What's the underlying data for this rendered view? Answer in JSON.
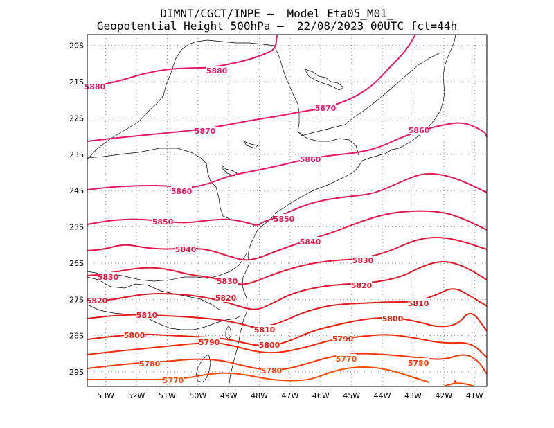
{
  "header": {
    "line1": "DIMNT/CGCT/INPE –  Model Eta05_M01_",
    "line2": "Geopotential Height 500hPa –  22/08/2023 00UTC fct=44h"
  },
  "map": {
    "lon_range": [
      -53.6,
      -40.6
    ],
    "lat_range": [
      -29.4,
      -19.7
    ],
    "lat_labels": [
      "20S",
      "21S",
      "22S",
      "23S",
      "24S",
      "25S",
      "26S",
      "27S",
      "28S",
      "29S"
    ],
    "lon_labels": [
      "53W",
      "52W",
      "51W",
      "50W",
      "49W",
      "48W",
      "47W",
      "46W",
      "45W",
      "44W",
      "43W",
      "42W",
      "41W"
    ],
    "grid": "dotted",
    "coastline_color": "#000000"
  },
  "contours": {
    "unit": "gpm",
    "interval": 10,
    "levels": [
      {
        "value": 5880,
        "color": "#e8196a",
        "label": "5880"
      },
      {
        "value": 5870,
        "color": "#e8196a",
        "label": "5870"
      },
      {
        "value": 5860,
        "color": "#e8196a",
        "label": "5860"
      },
      {
        "value": 5850,
        "color": "#e11a55",
        "label": "5850"
      },
      {
        "value": 5840,
        "color": "#e01a48",
        "label": "5840"
      },
      {
        "value": 5830,
        "color": "#e01a3a",
        "label": "5830"
      },
      {
        "value": 5820,
        "color": "#e01a2a",
        "label": "5820"
      },
      {
        "value": 5810,
        "color": "#e31a1c",
        "label": "5810"
      },
      {
        "value": 5800,
        "color": "#e8200f",
        "label": "5800"
      },
      {
        "value": 5790,
        "color": "#ef2a0a",
        "label": "5790"
      },
      {
        "value": 5780,
        "color": "#f53808",
        "label": "5780"
      },
      {
        "value": 5770,
        "color": "#fa4a05",
        "label": "5770"
      }
    ]
  }
}
